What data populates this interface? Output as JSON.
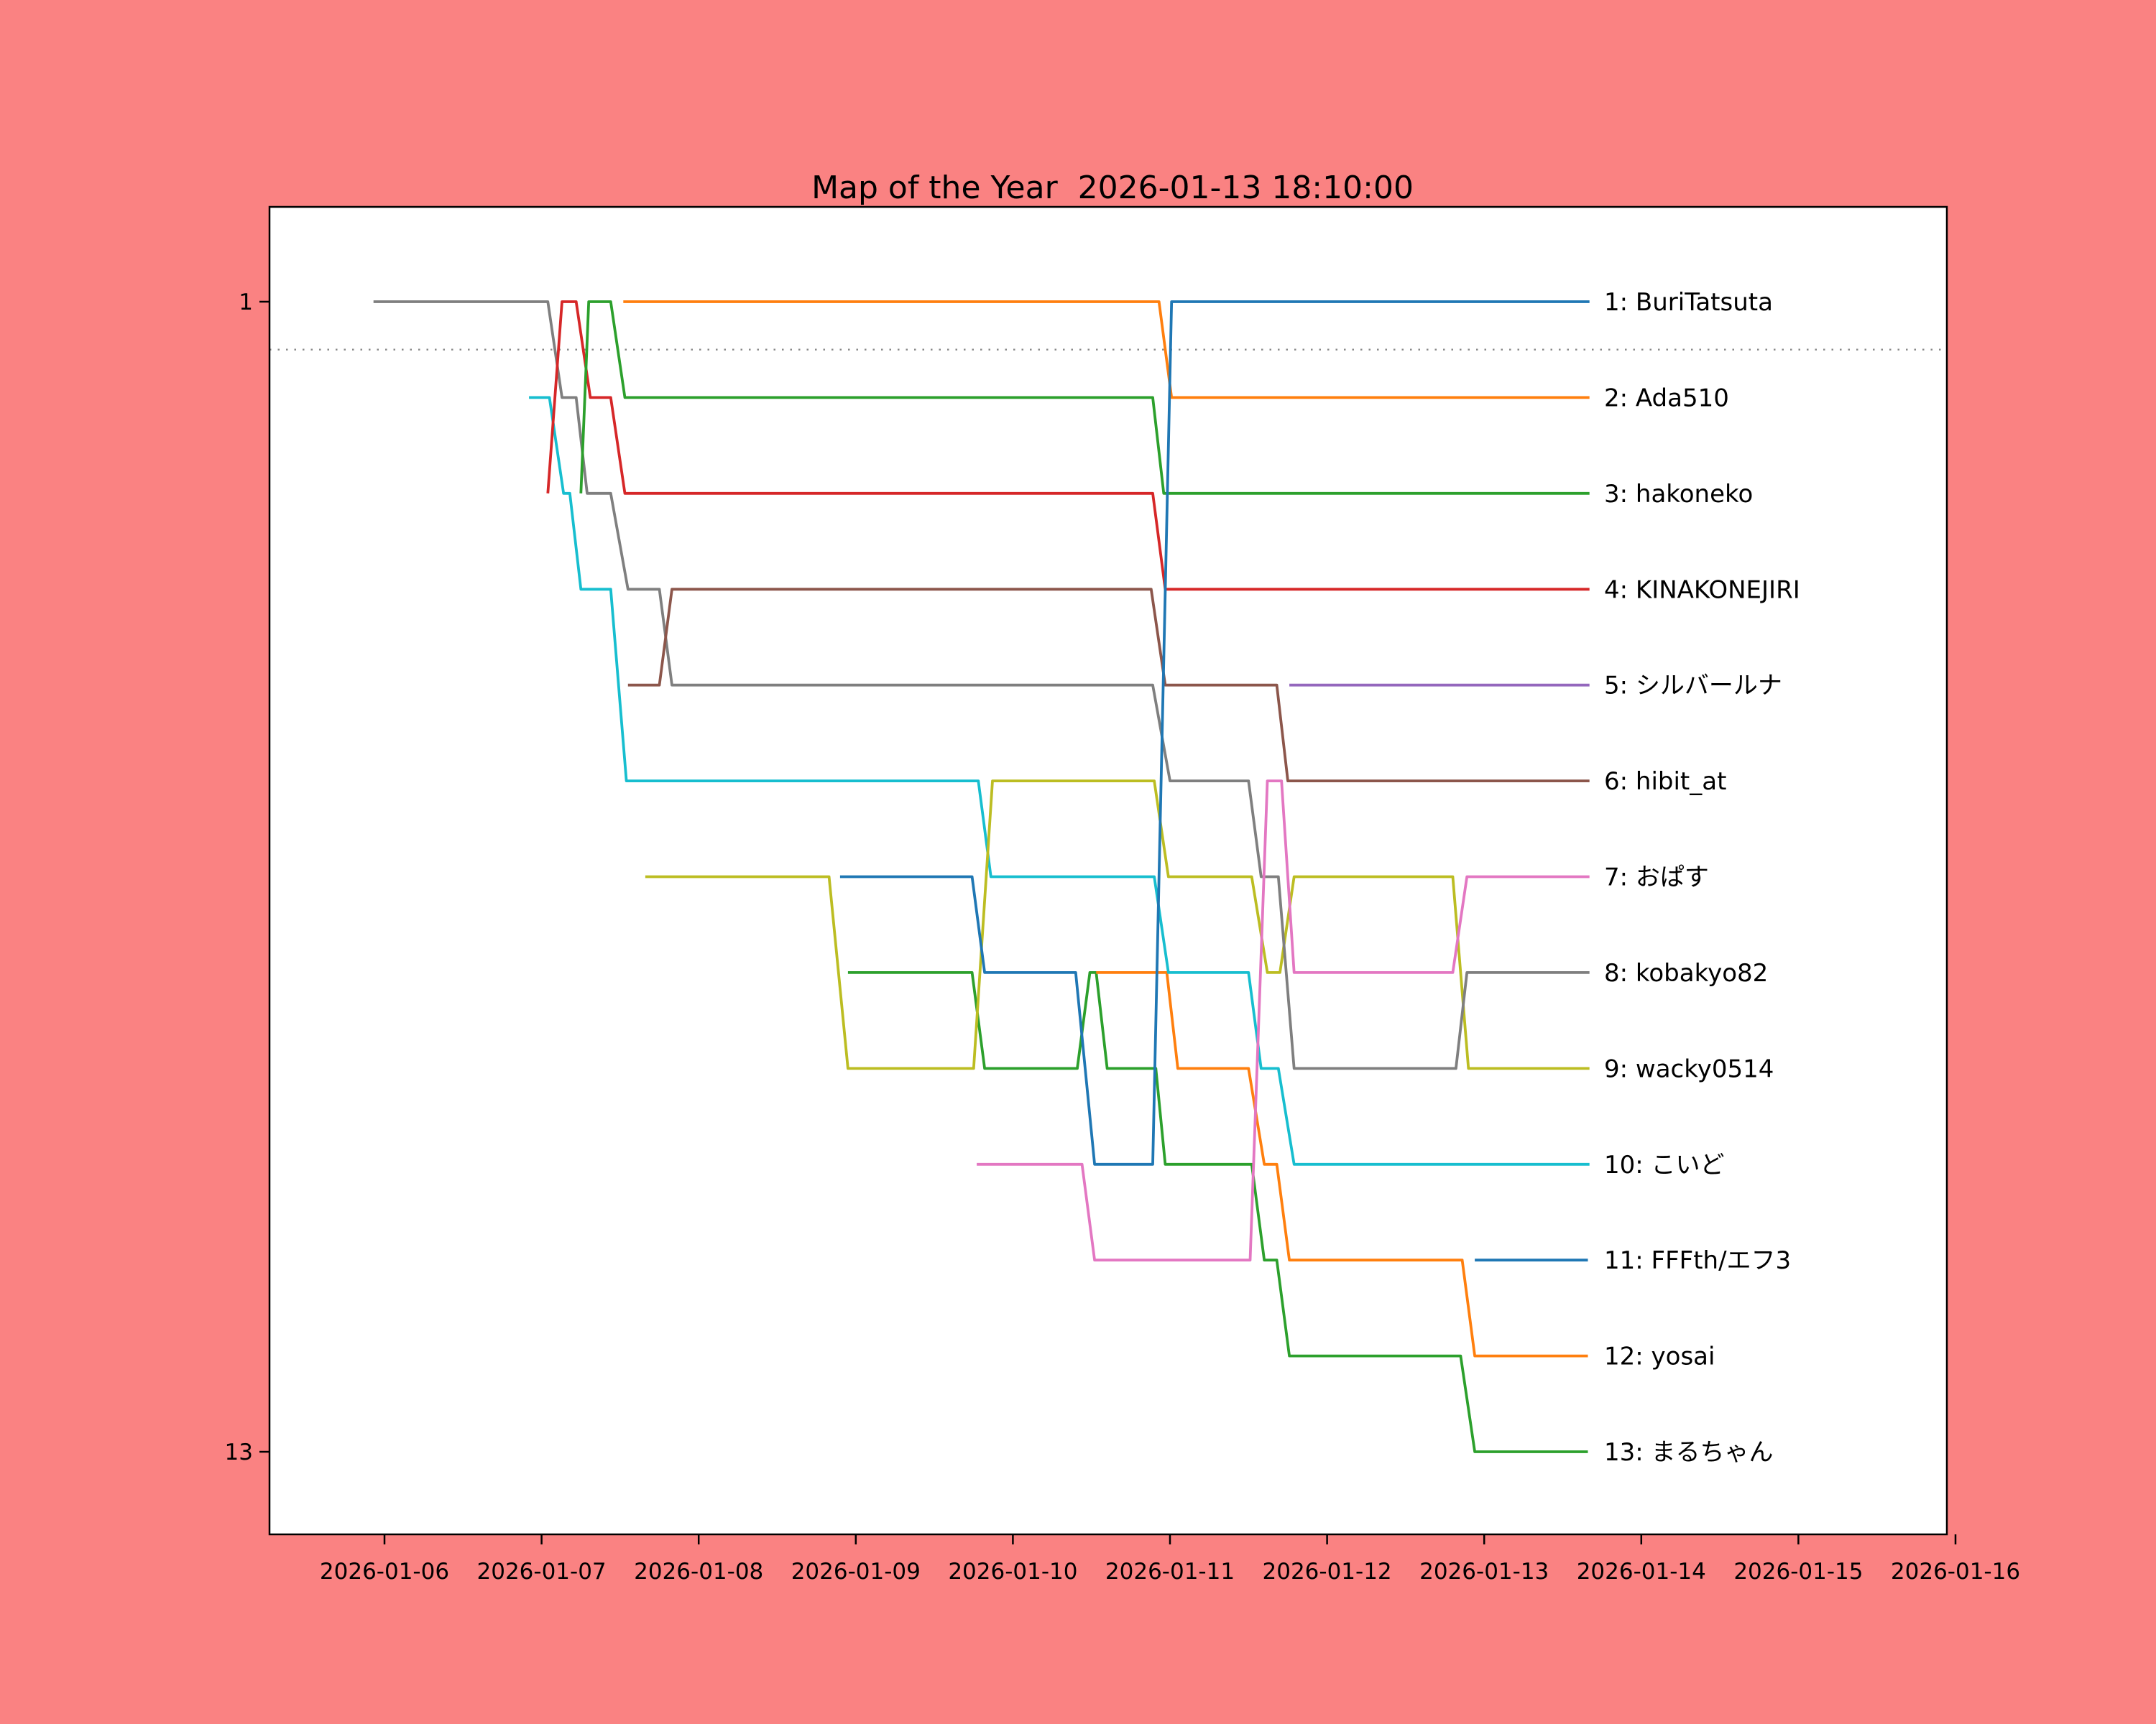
{
  "colors": {
    "figure_background": "#fa8282",
    "plot_background": "#ffffff",
    "frame": "#000000",
    "threshold_line": "#888888",
    "text": "#000000"
  },
  "chart_data": {
    "type": "line",
    "subtype": "bump-ranking-chart",
    "title": "Map of the Year  2026-01-13 18:10:00",
    "xlabel": "",
    "ylabel": "",
    "x_tick_labels": [
      "2026-01-06",
      "2026-01-07",
      "2026-01-08",
      "2026-01-09",
      "2026-01-10",
      "2026-01-11",
      "2026-01-12",
      "2026-01-13",
      "2026-01-14",
      "2026-01-15",
      "2026-01-16"
    ],
    "y_tick_labels": [
      {
        "rank": 1,
        "label": "1"
      },
      {
        "rank": 13,
        "label": "13"
      }
    ],
    "ylim": [
      13,
      1
    ],
    "grid": false,
    "threshold_line": {
      "rank": 1.5,
      "style": "dotted"
    },
    "legend_position": "right-of-line-ends",
    "series": [
      {
        "final_rank": 1,
        "name": "BuriTatsuta",
        "label": "1: BuriTatsuta",
        "color": "#1f77b4",
        "points": [
          [
            2.9,
            7
          ],
          [
            3.74,
            7
          ],
          [
            3.82,
            8
          ],
          [
            4.4,
            8
          ],
          [
            4.52,
            10
          ],
          [
            4.89,
            10
          ],
          [
            5.01,
            1
          ],
          [
            7.67,
            1
          ]
        ]
      },
      {
        "final_rank": 2,
        "name": "Ada510",
        "label": "2: Ada510",
        "color": "#ff7f0e",
        "points": [
          [
            1.52,
            1
          ],
          [
            4.93,
            1
          ],
          [
            5.01,
            2
          ],
          [
            7.67,
            2
          ]
        ]
      },
      {
        "final_rank": 3,
        "name": "hakoneko",
        "label": "3: hakoneko",
        "color": "#2ca02c",
        "points": [
          [
            1.25,
            3
          ],
          [
            1.3,
            1
          ],
          [
            1.44,
            1
          ],
          [
            1.53,
            2
          ],
          [
            4.89,
            2
          ],
          [
            4.96,
            3
          ],
          [
            7.67,
            3
          ]
        ]
      },
      {
        "final_rank": 4,
        "name": "KINAKONEJIRI",
        "label": "4: KINAKONEJIRI",
        "color": "#d62728",
        "points": [
          [
            1.04,
            3
          ],
          [
            1.13,
            1
          ],
          [
            1.22,
            1
          ],
          [
            1.31,
            2
          ],
          [
            1.44,
            2
          ],
          [
            1.53,
            3
          ],
          [
            4.89,
            3
          ],
          [
            4.97,
            4
          ],
          [
            7.67,
            4
          ]
        ]
      },
      {
        "final_rank": 5,
        "name": "シルバールナ",
        "label": "5: シルバールナ",
        "color": "#9467bd",
        "points": [
          [
            5.76,
            5
          ],
          [
            7.67,
            5
          ]
        ]
      },
      {
        "final_rank": 6,
        "name": "hibit_at",
        "label": "6: hibit_at",
        "color": "#8c564b",
        "points": [
          [
            1.55,
            5
          ],
          [
            1.75,
            5
          ],
          [
            1.83,
            4
          ],
          [
            4.88,
            4
          ],
          [
            4.97,
            5
          ],
          [
            5.68,
            5
          ],
          [
            5.75,
            6
          ],
          [
            7.67,
            6
          ]
        ]
      },
      {
        "final_rank": 7,
        "name": "おぱす",
        "label": "7: おぱす",
        "color": "#e377c2",
        "points": [
          [
            3.77,
            10
          ],
          [
            4.44,
            10
          ],
          [
            4.52,
            11
          ],
          [
            5.51,
            11
          ],
          [
            5.62,
            6
          ],
          [
            5.71,
            6
          ],
          [
            5.79,
            8
          ],
          [
            6.8,
            8
          ],
          [
            6.89,
            7
          ],
          [
            7.67,
            7
          ]
        ]
      },
      {
        "final_rank": 8,
        "name": "kobakyo82",
        "label": "8: kobakyo82",
        "color": "#7f7f7f",
        "points": [
          [
            -0.07,
            1
          ],
          [
            1.04,
            1
          ],
          [
            1.13,
            2
          ],
          [
            1.22,
            2
          ],
          [
            1.29,
            3
          ],
          [
            1.44,
            3
          ],
          [
            1.55,
            4
          ],
          [
            1.75,
            4
          ],
          [
            1.83,
            5
          ],
          [
            4.89,
            5
          ],
          [
            5.0,
            6
          ],
          [
            5.5,
            6
          ],
          [
            5.58,
            7
          ],
          [
            5.69,
            7
          ],
          [
            5.79,
            9
          ],
          [
            6.82,
            9
          ],
          [
            6.89,
            8
          ],
          [
            7.67,
            8
          ]
        ]
      },
      {
        "final_rank": 9,
        "name": "wacky0514",
        "label": "9: wacky0514",
        "color": "#bcbd22",
        "points": [
          [
            1.66,
            7
          ],
          [
            2.83,
            7
          ],
          [
            2.95,
            9
          ],
          [
            3.75,
            9
          ],
          [
            3.87,
            6
          ],
          [
            4.9,
            6
          ],
          [
            4.99,
            7
          ],
          [
            5.52,
            7
          ],
          [
            5.62,
            8
          ],
          [
            5.7,
            8
          ],
          [
            5.79,
            7
          ],
          [
            6.8,
            7
          ],
          [
            6.9,
            9
          ],
          [
            7.67,
            9
          ]
        ]
      },
      {
        "final_rank": 10,
        "name": "こいど",
        "label": "10: こいど",
        "color": "#17becf",
        "points": [
          [
            0.92,
            2
          ],
          [
            1.05,
            2
          ],
          [
            1.14,
            3
          ],
          [
            1.18,
            3
          ],
          [
            1.25,
            4
          ],
          [
            1.44,
            4
          ],
          [
            1.54,
            6
          ],
          [
            3.78,
            6
          ],
          [
            3.86,
            7
          ],
          [
            4.9,
            7
          ],
          [
            4.99,
            8
          ],
          [
            5.5,
            8
          ],
          [
            5.58,
            9
          ],
          [
            5.69,
            9
          ],
          [
            5.79,
            10
          ],
          [
            7.67,
            10
          ]
        ]
      },
      {
        "final_rank": 11,
        "name": "FFFth/エフ3",
        "label": "11: FFFth/エフ3",
        "color": "#1f77b4",
        "points": [
          [
            6.94,
            11
          ],
          [
            7.66,
            11
          ]
        ]
      },
      {
        "final_rank": 12,
        "name": "yosai",
        "label": "12: yosai",
        "color": "#ff7f0e",
        "points": [
          [
            4.53,
            8
          ],
          [
            4.98,
            8
          ],
          [
            5.05,
            9
          ],
          [
            5.5,
            9
          ],
          [
            5.6,
            10
          ],
          [
            5.68,
            10
          ],
          [
            5.76,
            11
          ],
          [
            6.86,
            11
          ],
          [
            6.94,
            12
          ],
          [
            7.66,
            12
          ]
        ]
      },
      {
        "final_rank": 13,
        "name": "まるちゃん",
        "label": "13: まるちゃん",
        "color": "#2ca02c",
        "points": [
          [
            2.95,
            8
          ],
          [
            3.74,
            8
          ],
          [
            3.82,
            9
          ],
          [
            4.41,
            9
          ],
          [
            4.49,
            8
          ],
          [
            4.53,
            8
          ],
          [
            4.6,
            9
          ],
          [
            4.91,
            9
          ],
          [
            4.97,
            10
          ],
          [
            5.52,
            10
          ],
          [
            5.6,
            11
          ],
          [
            5.68,
            11
          ],
          [
            5.76,
            12
          ],
          [
            6.85,
            12
          ],
          [
            6.94,
            13
          ],
          [
            7.66,
            13
          ]
        ]
      }
    ]
  }
}
